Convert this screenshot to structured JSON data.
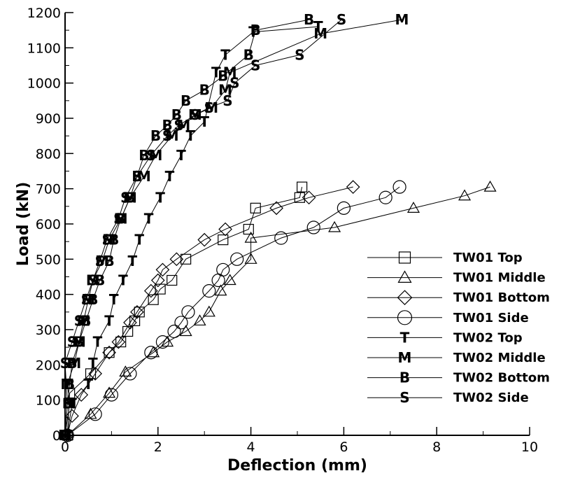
{
  "chart_data": {
    "type": "line",
    "title": "",
    "xlabel": "Deflection (mm)",
    "ylabel": "Load (kN)",
    "xlim": [
      0,
      10
    ],
    "ylim": [
      0,
      1200
    ],
    "xticks": [
      0,
      2,
      4,
      6,
      8,
      10
    ],
    "yticks": [
      0,
      100,
      200,
      300,
      400,
      500,
      600,
      700,
      800,
      900,
      1000,
      1100,
      1200
    ],
    "grid": false,
    "legend_position": "bottom-right",
    "series": [
      {
        "name": "TW01 Top",
        "marker": "square",
        "x": [
          0.05,
          0.1,
          0.55,
          0.95,
          1.2,
          1.35,
          1.5,
          1.6,
          1.9,
          2.05,
          2.3,
          2.6,
          3.4,
          3.95,
          4.1,
          5.05,
          5.1
        ],
        "y": [
          0,
          120,
          175,
          235,
          265,
          295,
          325,
          350,
          385,
          415,
          440,
          500,
          555,
          585,
          645,
          675,
          705
        ]
      },
      {
        "name": "TW01 Middle",
        "marker": "triangle",
        "x": [
          0.05,
          0.55,
          0.95,
          1.3,
          1.9,
          2.2,
          2.6,
          2.9,
          3.1,
          3.35,
          3.55,
          4.0,
          4.0,
          5.8,
          7.5,
          8.6,
          9.15
        ],
        "y": [
          0,
          60,
          120,
          180,
          235,
          265,
          295,
          325,
          350,
          410,
          440,
          500,
          560,
          590,
          645,
          680,
          705
        ]
      },
      {
        "name": "TW01 Bottom",
        "marker": "diamond",
        "x": [
          0.05,
          0.15,
          0.35,
          0.65,
          0.95,
          1.15,
          1.4,
          1.55,
          1.85,
          2.0,
          2.1,
          2.4,
          3.0,
          3.45,
          4.55,
          5.25,
          6.2
        ],
        "y": [
          0,
          55,
          115,
          175,
          235,
          265,
          320,
          350,
          410,
          440,
          470,
          500,
          555,
          585,
          645,
          675,
          705
        ]
      },
      {
        "name": "TW01 Side",
        "marker": "circle",
        "x": [
          0.05,
          0.65,
          1.0,
          1.4,
          1.85,
          2.1,
          2.35,
          2.5,
          2.65,
          3.1,
          3.3,
          3.4,
          3.7,
          4.65,
          5.35,
          6.0,
          6.9,
          7.2
        ],
        "y": [
          0,
          60,
          115,
          175,
          235,
          265,
          295,
          320,
          350,
          410,
          440,
          470,
          500,
          560,
          590,
          645,
          675,
          705
        ]
      },
      {
        "name": "TW02 Top",
        "marker": "T",
        "label": "T",
        "x": [
          0.05,
          0.15,
          0.5,
          0.6,
          0.7,
          0.95,
          1.05,
          1.25,
          1.45,
          1.6,
          1.8,
          2.05,
          2.25,
          2.5,
          2.7,
          3.0,
          3.25,
          3.45,
          4.05,
          5.45
        ],
        "y": [
          0,
          90,
          145,
          205,
          265,
          325,
          385,
          440,
          495,
          555,
          615,
          675,
          735,
          795,
          850,
          890,
          1030,
          1080,
          1145,
          1160
        ]
      },
      {
        "name": "TW02 Middle",
        "marker": "M",
        "label": "M",
        "x": [
          0.0,
          0.1,
          0.05,
          0.2,
          0.3,
          0.4,
          0.5,
          0.6,
          0.8,
          0.95,
          1.2,
          1.4,
          1.7,
          1.95,
          2.3,
          2.55,
          2.8,
          3.15,
          3.45,
          3.55,
          5.5,
          7.25
        ],
        "y": [
          0,
          90,
          145,
          205,
          265,
          325,
          385,
          440,
          495,
          555,
          615,
          675,
          735,
          795,
          850,
          880,
          910,
          930,
          980,
          1030,
          1140,
          1180
        ]
      },
      {
        "name": "TW02 Bottom",
        "marker": "B",
        "label": "B",
        "x": [
          0.0,
          0.05,
          0.1,
          0.15,
          0.3,
          0.45,
          0.6,
          0.75,
          0.95,
          1.05,
          1.2,
          1.4,
          1.55,
          1.7,
          1.95,
          2.2,
          2.4,
          2.6,
          3.0,
          3.4,
          3.95,
          4.1,
          5.25
        ],
        "y": [
          0,
          90,
          145,
          205,
          265,
          325,
          385,
          440,
          495,
          555,
          615,
          675,
          735,
          795,
          850,
          880,
          910,
          950,
          980,
          1020,
          1080,
          1150,
          1180
        ]
      },
      {
        "name": "TW02 Side",
        "marker": "S",
        "label": "S",
        "x": [
          0.0,
          0.05,
          0.0,
          0.15,
          0.3,
          0.45,
          0.6,
          0.75,
          0.9,
          1.15,
          1.3,
          1.55,
          1.85,
          2.2,
          2.45,
          2.8,
          3.1,
          3.5,
          3.65,
          4.1,
          5.05,
          5.95
        ],
        "y": [
          0,
          90,
          205,
          265,
          325,
          385,
          440,
          495,
          555,
          615,
          675,
          735,
          795,
          850,
          880,
          910,
          930,
          950,
          1000,
          1050,
          1080,
          1180
        ]
      }
    ]
  }
}
